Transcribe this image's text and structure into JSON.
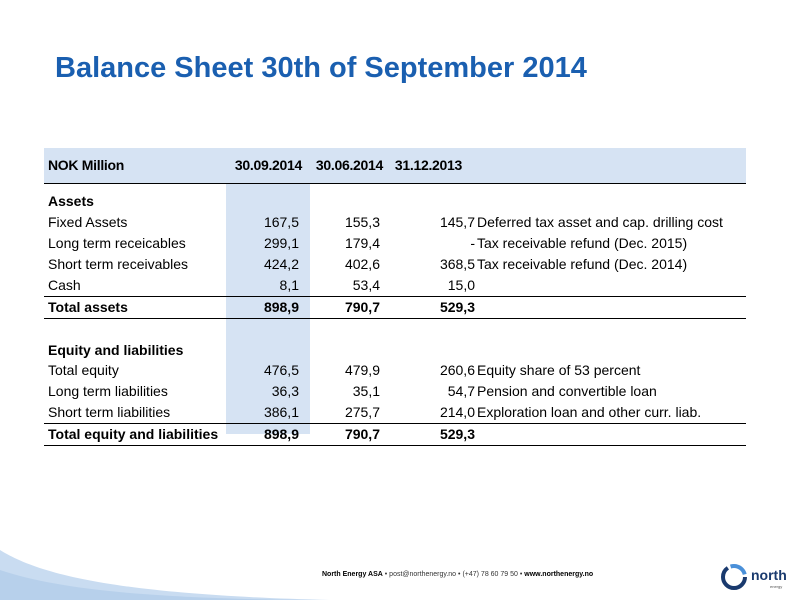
{
  "title": "Balance Sheet 30th of September 2014",
  "header": {
    "label": "NOK Million",
    "col1": "30.09.2014",
    "col2": "30.06.2014",
    "col3": "31.12.2013"
  },
  "assets": {
    "heading": "Assets",
    "rows": [
      {
        "label": "Fixed Assets",
        "v1": "167,5",
        "v2": "155,3",
        "v3": "145,7",
        "note": "Deferred tax asset and cap. drilling cost"
      },
      {
        "label": "Long term receicables",
        "v1": "299,1",
        "v2": "179,4",
        "v3": "-",
        "note": "Tax receivable refund (Dec. 2015)"
      },
      {
        "label": "Short term receivables",
        "v1": "424,2",
        "v2": "402,6",
        "v3": "368,5",
        "note": "Tax receivable refund (Dec. 2014)"
      },
      {
        "label": "Cash",
        "v1": "8,1",
        "v2": "53,4",
        "v3": "15,0",
        "note": ""
      }
    ],
    "total": {
      "label": "Total assets",
      "v1": "898,9",
      "v2": "790,7",
      "v3": "529,3"
    }
  },
  "equity": {
    "heading": "Equity and liabilities",
    "rows": [
      {
        "label": "Total equity",
        "v1": "476,5",
        "v2": "479,9",
        "v3": "260,6",
        "note": "Equity share of 53 percent"
      },
      {
        "label": "Long term liabilities",
        "v1": "36,3",
        "v2": "35,1",
        "v3": "54,7",
        "note": "Pension and convertible loan"
      },
      {
        "label": "Short term liabilities",
        "v1": "386,1",
        "v2": "275,7",
        "v3": "214,0",
        "note": "Exploration loan and other curr. liab."
      }
    ],
    "total": {
      "label": "Total equity and liabilities",
      "v1": "898,9",
      "v2": "790,7",
      "v3": "529,3"
    }
  },
  "footer": {
    "company": "North Energy ASA",
    "email": "post@northenergy.no",
    "phone": "(+47) 78 60 79 50",
    "website": "www.northenergy.no",
    "separator": "•"
  },
  "logo": {
    "name": "north",
    "sub": "energy"
  },
  "colors": {
    "title": "#1a5fb0",
    "band": "#d6e3f3",
    "logo_blue": "#1a3a6e",
    "swoosh": "#c9dcf1"
  }
}
